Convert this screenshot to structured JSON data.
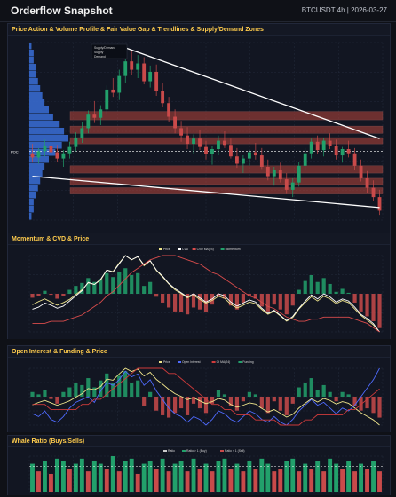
{
  "header": {
    "title": "Orderflow Snapshot",
    "symbol_date": "BTCUSDT 4h | 2026-03-27"
  },
  "panels": [
    {
      "id": "price",
      "title": "Price Action & Volume Profile & Fair Value Gap & Trendlines & Supply/Demand Zones"
    },
    {
      "id": "momentum",
      "title": "Momentum & CVD & Price"
    },
    {
      "id": "oi",
      "title": "Open Interest & Funding & Price"
    },
    {
      "id": "whale",
      "title": "Whale Ratio (Buys/Sells)"
    }
  ],
  "chart_data": [
    {
      "type": "candlestick",
      "legend": [
        "Supply/Demand",
        "Supply",
        "Demand"
      ],
      "legend_placement": "top-left",
      "poc_label": "POC",
      "candles": [
        {
          "o": 68.4,
          "h": 69.3,
          "l": 67.5,
          "c": 68.0
        },
        {
          "o": 68.0,
          "h": 68.9,
          "l": 67.4,
          "c": 68.6
        },
        {
          "o": 68.6,
          "h": 69.7,
          "l": 68.1,
          "c": 69.1
        },
        {
          "o": 69.1,
          "h": 69.8,
          "l": 68.2,
          "c": 68.5
        },
        {
          "o": 68.5,
          "h": 69.2,
          "l": 67.6,
          "c": 67.9
        },
        {
          "o": 67.9,
          "h": 68.7,
          "l": 67.1,
          "c": 68.4
        },
        {
          "o": 68.4,
          "h": 69.5,
          "l": 67.9,
          "c": 69.0
        },
        {
          "o": 69.0,
          "h": 70.4,
          "l": 68.6,
          "c": 69.9
        },
        {
          "o": 69.9,
          "h": 71.4,
          "l": 69.4,
          "c": 70.8
        },
        {
          "o": 70.8,
          "h": 72.5,
          "l": 70.3,
          "c": 72.1
        },
        {
          "o": 72.1,
          "h": 73.4,
          "l": 71.3,
          "c": 71.8
        },
        {
          "o": 71.8,
          "h": 73.0,
          "l": 71.1,
          "c": 72.6
        },
        {
          "o": 72.6,
          "h": 74.9,
          "l": 72.2,
          "c": 74.5
        },
        {
          "o": 74.5,
          "h": 75.6,
          "l": 73.8,
          "c": 74.2
        },
        {
          "o": 74.2,
          "h": 76.4,
          "l": 73.5,
          "c": 75.8
        },
        {
          "o": 75.8,
          "h": 77.9,
          "l": 75.1,
          "c": 77.2
        },
        {
          "o": 77.2,
          "h": 78.2,
          "l": 75.9,
          "c": 76.4
        },
        {
          "o": 76.4,
          "h": 77.8,
          "l": 75.6,
          "c": 77.0
        },
        {
          "o": 77.0,
          "h": 77.6,
          "l": 75.0,
          "c": 75.3
        },
        {
          "o": 75.3,
          "h": 76.8,
          "l": 74.7,
          "c": 76.2
        },
        {
          "o": 76.2,
          "h": 76.9,
          "l": 73.9,
          "c": 74.4
        },
        {
          "o": 74.4,
          "h": 75.1,
          "l": 72.8,
          "c": 73.2
        },
        {
          "o": 73.2,
          "h": 73.8,
          "l": 71.4,
          "c": 71.9
        },
        {
          "o": 71.9,
          "h": 72.6,
          "l": 70.3,
          "c": 70.8
        },
        {
          "o": 70.8,
          "h": 71.5,
          "l": 69.5,
          "c": 70.1
        },
        {
          "o": 70.1,
          "h": 70.9,
          "l": 68.8,
          "c": 69.3
        },
        {
          "o": 69.3,
          "h": 70.2,
          "l": 68.4,
          "c": 69.8
        },
        {
          "o": 69.8,
          "h": 70.6,
          "l": 68.7,
          "c": 69.0
        },
        {
          "o": 69.0,
          "h": 69.6,
          "l": 67.8,
          "c": 68.3
        },
        {
          "o": 68.3,
          "h": 69.1,
          "l": 67.3,
          "c": 68.8
        },
        {
          "o": 68.8,
          "h": 70.1,
          "l": 68.2,
          "c": 69.6
        },
        {
          "o": 69.6,
          "h": 70.5,
          "l": 68.9,
          "c": 69.2
        },
        {
          "o": 69.2,
          "h": 69.8,
          "l": 67.9,
          "c": 68.1
        },
        {
          "o": 68.1,
          "h": 68.9,
          "l": 67.0,
          "c": 67.4
        },
        {
          "o": 67.4,
          "h": 68.2,
          "l": 66.5,
          "c": 67.9
        },
        {
          "o": 67.9,
          "h": 68.7,
          "l": 67.2,
          "c": 68.5
        },
        {
          "o": 68.5,
          "h": 69.4,
          "l": 67.8,
          "c": 68.2
        },
        {
          "o": 68.2,
          "h": 68.9,
          "l": 66.9,
          "c": 67.1
        },
        {
          "o": 67.1,
          "h": 67.8,
          "l": 65.8,
          "c": 66.2
        },
        {
          "o": 66.2,
          "h": 67.1,
          "l": 65.3,
          "c": 66.8
        },
        {
          "o": 66.8,
          "h": 67.5,
          "l": 65.6,
          "c": 65.9
        },
        {
          "o": 65.9,
          "h": 66.5,
          "l": 64.5,
          "c": 64.9
        },
        {
          "o": 64.9,
          "h": 66.0,
          "l": 64.2,
          "c": 65.6
        },
        {
          "o": 65.6,
          "h": 67.6,
          "l": 65.2,
          "c": 67.2
        },
        {
          "o": 67.2,
          "h": 68.9,
          "l": 66.8,
          "c": 68.4
        },
        {
          "o": 68.4,
          "h": 69.8,
          "l": 67.9,
          "c": 69.5
        },
        {
          "o": 69.5,
          "h": 70.1,
          "l": 68.3,
          "c": 68.7
        },
        {
          "o": 68.7,
          "h": 69.9,
          "l": 68.1,
          "c": 69.6
        },
        {
          "o": 69.6,
          "h": 70.3,
          "l": 68.8,
          "c": 69.1
        },
        {
          "o": 69.1,
          "h": 69.7,
          "l": 67.8,
          "c": 68.2
        },
        {
          "o": 68.2,
          "h": 69.0,
          "l": 67.5,
          "c": 68.8
        },
        {
          "o": 68.8,
          "h": 69.6,
          "l": 68.0,
          "c": 68.4
        },
        {
          "o": 68.4,
          "h": 68.9,
          "l": 66.8,
          "c": 67.2
        },
        {
          "o": 67.2,
          "h": 67.8,
          "l": 65.7,
          "c": 66.0
        },
        {
          "o": 66.0,
          "h": 66.7,
          "l": 64.6,
          "c": 65.1
        },
        {
          "o": 65.1,
          "h": 65.8,
          "l": 63.8,
          "c": 64.2
        },
        {
          "o": 64.2,
          "h": 64.9,
          "l": 62.5,
          "c": 62.9
        }
      ],
      "zones": [
        {
          "kind": "supply",
          "low": 71.6,
          "high": 72.4
        },
        {
          "kind": "supply",
          "low": 70.3,
          "high": 71.0
        },
        {
          "kind": "supply",
          "low": 69.3,
          "high": 69.9
        },
        {
          "kind": "demand",
          "low": 66.5,
          "high": 67.2
        },
        {
          "kind": "demand",
          "low": 65.4,
          "high": 66.0
        },
        {
          "kind": "demand",
          "low": 64.5,
          "high": 65.1
        }
      ],
      "trendlines": [
        {
          "from": [
            15,
            78.5
          ],
          "to": [
            56,
            69.8
          ]
        },
        {
          "from": [
            0,
            66.2
          ],
          "to": [
            56,
            63.2
          ]
        }
      ],
      "poc": 68.6,
      "volume_profile": [
        1,
        2,
        2,
        3,
        4,
        5,
        6,
        7,
        9,
        12,
        15,
        18,
        16,
        14,
        11,
        9,
        7,
        6,
        5,
        4,
        3,
        3,
        2,
        2,
        1
      ],
      "ylim": [
        62,
        79
      ],
      "grid": true
    },
    {
      "type": "line+bar",
      "legend": [
        "Price",
        "CVD",
        "CVD MA(24)",
        "Momentum"
      ],
      "legend_placement": "top-center",
      "price": [
        68.0,
        68.6,
        69.1,
        68.5,
        67.9,
        68.4,
        69.0,
        69.9,
        70.8,
        72.1,
        71.8,
        72.6,
        74.5,
        74.2,
        75.8,
        77.2,
        76.4,
        77.0,
        75.3,
        76.2,
        74.4,
        73.2,
        71.9,
        70.8,
        70.1,
        69.3,
        69.8,
        69.0,
        68.3,
        68.8,
        69.6,
        69.2,
        68.1,
        67.4,
        67.9,
        68.5,
        68.2,
        67.1,
        66.2,
        66.8,
        65.9,
        64.9,
        65.6,
        67.2,
        68.4,
        69.5,
        68.7,
        69.6,
        69.1,
        68.2,
        68.8,
        68.4,
        67.2,
        66.0,
        65.1,
        64.2,
        62.9
      ],
      "cvd": [
        -1.2,
        -1.0,
        -0.6,
        -0.8,
        -1.1,
        -0.9,
        -0.4,
        0.1,
        0.6,
        1.4,
        1.2,
        1.7,
        2.6,
        2.4,
        3.2,
        4.0,
        3.6,
        3.9,
        3.1,
        3.5,
        2.6,
        2.0,
        1.3,
        0.8,
        0.4,
        0.0,
        0.3,
        -0.1,
        -0.5,
        -0.2,
        0.3,
        0.1,
        -0.5,
        -0.9,
        -0.6,
        -0.3,
        -0.5,
        -1.1,
        -1.6,
        -1.3,
        -1.8,
        -2.3,
        -1.9,
        -1.1,
        -0.4,
        0.2,
        -0.2,
        0.3,
        0.0,
        -0.5,
        -0.2,
        -0.4,
        -1.0,
        -1.7,
        -2.1,
        -2.6,
        -3.4
      ],
      "cvd_ma": [
        -0.9,
        -0.9,
        -0.9,
        -0.8,
        -0.8,
        -0.8,
        -0.7,
        -0.6,
        -0.5,
        -0.3,
        -0.1,
        0.1,
        0.4,
        0.6,
        0.9,
        1.2,
        1.5,
        1.7,
        1.9,
        2.1,
        2.2,
        2.3,
        2.3,
        2.3,
        2.2,
        2.1,
        2.0,
        1.9,
        1.7,
        1.5,
        1.4,
        1.2,
        1.0,
        0.8,
        0.6,
        0.4,
        0.3,
        0.1,
        -0.1,
        -0.2,
        -0.4,
        -0.6,
        -0.7,
        -0.8,
        -0.8,
        -0.7,
        -0.7,
        -0.6,
        -0.6,
        -0.6,
        -0.6,
        -0.6,
        -0.7,
        -0.8,
        -0.9,
        -1.1,
        -1.3
      ],
      "momentum": [
        -0.4,
        -0.2,
        0.3,
        -0.1,
        -0.5,
        -0.2,
        0.4,
        0.8,
        1.1,
        1.6,
        1.2,
        1.5,
        2.1,
        1.7,
        2.2,
        2.6,
        1.9,
        2.1,
        0.8,
        1.2,
        -0.3,
        -0.9,
        -1.4,
        -1.8,
        -1.9,
        -2.1,
        -1.4,
        -1.6,
        -1.9,
        -1.1,
        -0.3,
        -0.5,
        -1.2,
        -1.6,
        -0.9,
        -0.2,
        -0.5,
        -1.3,
        -1.8,
        -1.1,
        -1.6,
        -2.1,
        -1.2,
        0.4,
        1.3,
        1.9,
        1.2,
        1.6,
        1.0,
        0.2,
        0.5,
        0.1,
        -0.9,
        -1.8,
        -2.3,
        -2.8,
        -3.5
      ],
      "grid": true
    },
    {
      "type": "line+bar",
      "legend": [
        "Price",
        "Open Interest",
        "OI MA(24)",
        "Funding"
      ],
      "legend_placement": "top-center",
      "price": [
        68.0,
        68.6,
        69.1,
        68.5,
        67.9,
        68.4,
        69.0,
        69.9,
        70.8,
        72.1,
        71.8,
        72.6,
        74.5,
        74.2,
        75.8,
        77.2,
        76.4,
        77.0,
        75.3,
        76.2,
        74.4,
        73.2,
        71.9,
        70.8,
        70.1,
        69.3,
        69.8,
        69.0,
        68.3,
        68.8,
        69.6,
        69.2,
        68.1,
        67.4,
        67.9,
        68.5,
        68.2,
        67.1,
        66.2,
        66.8,
        65.9,
        64.9,
        65.6,
        67.2,
        68.4,
        69.5,
        68.7,
        69.6,
        69.1,
        68.2,
        68.8,
        68.4,
        67.2,
        66.0,
        65.1,
        64.2,
        62.9
      ],
      "open_interest": [
        58,
        57,
        59,
        56,
        55,
        57,
        60,
        62,
        63,
        64,
        62,
        66,
        69,
        68,
        70,
        73,
        71,
        72,
        68,
        70,
        66,
        63,
        60,
        58,
        57,
        55,
        57,
        56,
        54,
        56,
        59,
        58,
        56,
        55,
        57,
        59,
        58,
        56,
        55,
        57,
        55,
        54,
        56,
        59,
        61,
        63,
        61,
        62,
        60,
        58,
        60,
        59,
        61,
        64,
        67,
        70,
        74
      ],
      "oi_ma": [
        60,
        60,
        60,
        59,
        59,
        59,
        59,
        59,
        60,
        60,
        61,
        61,
        62,
        63,
        64,
        65,
        66,
        67,
        67,
        67,
        67,
        67,
        66,
        66,
        65,
        64,
        63,
        62,
        61,
        60,
        60,
        59,
        59,
        58,
        58,
        58,
        57,
        57,
        57,
        57,
        56,
        56,
        56,
        56,
        57,
        57,
        58,
        58,
        58,
        58,
        58,
        59,
        59,
        60,
        61,
        62,
        63
      ],
      "funding": [
        0.2,
        0.1,
        0.3,
        -0.1,
        -0.3,
        0.2,
        0.4,
        0.6,
        0.5,
        0.8,
        0.4,
        0.7,
        1.0,
        0.6,
        0.9,
        1.1,
        0.6,
        0.7,
        -0.4,
        0.2,
        -0.6,
        -0.8,
        -0.9,
        -0.7,
        -0.5,
        -0.8,
        -0.3,
        -0.5,
        -0.7,
        -0.3,
        0.3,
        0.1,
        -0.4,
        -0.6,
        -0.2,
        0.2,
        0.1,
        -0.5,
        -0.7,
        -0.2,
        -0.6,
        -0.8,
        -0.3,
        0.4,
        0.6,
        0.8,
        0.3,
        0.5,
        0.2,
        -0.2,
        0.2,
        0.1,
        -0.4,
        -0.6,
        -0.5,
        -0.7,
        -0.9
      ],
      "grid": true
    },
    {
      "type": "bar",
      "legend": [
        "Ratio",
        "Ratio > 1 (Buy)",
        "Ratio < 1 (Sell)"
      ],
      "legend_placement": "top-center",
      "ratio": [
        1.1,
        0.8,
        1.2,
        0.7,
        1.3,
        1.2,
        0.9,
        1.1,
        1.3,
        0.8,
        1.2,
        1.1,
        0.9,
        1.4,
        0.8,
        1.2,
        1.3,
        0.7,
        1.1,
        1.2,
        0.9,
        1.3,
        0.8,
        1.1,
        1.2,
        0.8,
        1.3,
        0.9,
        1.1,
        0.8,
        1.2,
        1.3,
        0.9,
        1.1,
        0.8,
        1.2,
        0.9,
        1.3,
        1.1,
        0.8,
        0.9,
        1.2,
        1.3,
        0.8,
        1.1,
        0.9,
        1.2,
        0.8,
        1.3,
        1.1,
        0.9,
        1.2,
        0.8,
        1.1,
        0.9,
        1.2,
        0.8
      ],
      "grid": true
    }
  ],
  "colors": {
    "up": "#22a06b",
    "down": "#c94a4a",
    "supply_zone": "#b8463d",
    "demand_zone": "#b8463d",
    "trendline": "#ffffff",
    "profile": "#3a6fd8",
    "price_line": "#f0e68c",
    "cvd_line": "#ffffff",
    "cvd_ma_line": "#d94c4c",
    "oi_line": "#4f6bff",
    "oi_ma_line": "#cf3b3b",
    "accent": "#ffcc4d"
  }
}
